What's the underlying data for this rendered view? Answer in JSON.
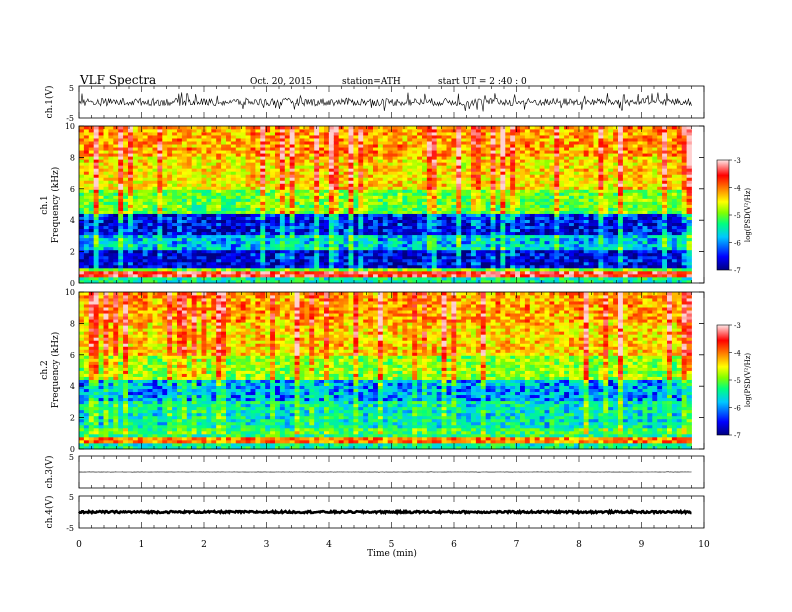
{
  "header": {
    "title": "VLF  Spectra",
    "date": "Oct. 20, 2015",
    "station": "station=ATH",
    "start": "start  UT =   2  :40 : 0"
  },
  "chart_data": [
    {
      "type": "line",
      "panel": "ch1-waveform",
      "ylabel": "ch.1(V)",
      "ylim": [
        -5,
        5
      ],
      "ytick_labels": [
        "5",
        "-5"
      ],
      "description_values": {
        "baseline": 0,
        "typical_amplitude": 1.2,
        "peak_amplitude": 3
      }
    },
    {
      "type": "heatmap",
      "panel": "ch1-spectrogram",
      "ylabel_channel": "ch.1",
      "ylabel": "Frequency  (kHz)",
      "ylim": [
        0,
        10
      ],
      "ytick_labels": [
        "0",
        "2",
        "4",
        "6",
        "8",
        "10"
      ],
      "xlim": [
        0,
        10
      ],
      "bands_khz_logpsd": [
        {
          "from": 0,
          "to": 0.3,
          "logpsd": -5.6
        },
        {
          "from": 0.3,
          "to": 0.7,
          "logpsd": -3.4
        },
        {
          "from": 0.7,
          "to": 1.0,
          "logpsd": -5.0
        },
        {
          "from": 1.0,
          "to": 2.2,
          "logpsd": -6.8
        },
        {
          "from": 2.2,
          "to": 3.0,
          "logpsd": -6.0
        },
        {
          "from": 3.0,
          "to": 4.5,
          "logpsd": -6.7
        },
        {
          "from": 4.5,
          "to": 6.0,
          "logpsd": -5.3
        },
        {
          "from": 6.0,
          "to": 8.0,
          "logpsd": -4.6
        },
        {
          "from": 8.0,
          "to": 10.0,
          "logpsd": -4.3
        }
      ],
      "colorbar": {
        "label": "log(PSD(V²/Hz)",
        "range": [
          -7,
          -3
        ],
        "tick_labels": [
          "-3",
          "-4",
          "-5",
          "-6",
          "-7"
        ]
      }
    },
    {
      "type": "heatmap",
      "panel": "ch2-spectrogram",
      "ylabel_channel": "ch.2",
      "ylabel": "Frequency  (kHz)",
      "ylim": [
        0,
        10
      ],
      "ytick_labels": [
        "0",
        "2",
        "4",
        "6",
        "8",
        "10"
      ],
      "xlim": [
        0,
        10
      ],
      "bands_khz_logpsd": [
        {
          "from": 0,
          "to": 0.3,
          "logpsd": -5.6
        },
        {
          "from": 0.3,
          "to": 0.8,
          "logpsd": -4.0
        },
        {
          "from": 0.8,
          "to": 1.3,
          "logpsd": -5.4
        },
        {
          "from": 1.3,
          "to": 3.0,
          "logpsd": -5.8
        },
        {
          "from": 3.0,
          "to": 4.5,
          "logpsd": -6.2
        },
        {
          "from": 4.5,
          "to": 6.0,
          "logpsd": -5.1
        },
        {
          "from": 6.0,
          "to": 8.0,
          "logpsd": -4.5
        },
        {
          "from": 8.0,
          "to": 10.0,
          "logpsd": -4.3
        }
      ],
      "colorbar": {
        "label": "log(PSD(V²/Hz)",
        "range": [
          -7,
          -3
        ],
        "tick_labels": [
          "-3",
          "-4",
          "-5",
          "-6",
          "-7"
        ]
      }
    },
    {
      "type": "line",
      "panel": "ch3-waveform",
      "ylabel": "ch.3(V)",
      "ylim": [
        -5,
        5
      ],
      "ytick_labels": [
        "5"
      ],
      "description_values": {
        "baseline": 0,
        "typical_amplitude": 0.05
      }
    },
    {
      "type": "line",
      "panel": "ch4-waveform",
      "ylabel": "ch.4(V)",
      "ylim": [
        -5,
        5
      ],
      "ytick_labels": [
        "5",
        "-5"
      ],
      "description_values": {
        "baseline": 0,
        "typical_amplitude": 0.3
      }
    }
  ],
  "xaxis": {
    "label": "Time  (min)",
    "range": [
      0,
      10
    ],
    "tick_labels": [
      "0",
      "1",
      "2",
      "3",
      "4",
      "5",
      "6",
      "7",
      "8",
      "9",
      "10"
    ],
    "data_end": 9.8
  },
  "colors": {
    "colormap": [
      "#000080",
      "#0000ff",
      "#00c8ff",
      "#00ff80",
      "#80ff00",
      "#ffff00",
      "#ff8000",
      "#ff0000",
      "#ffd0d0"
    ]
  }
}
